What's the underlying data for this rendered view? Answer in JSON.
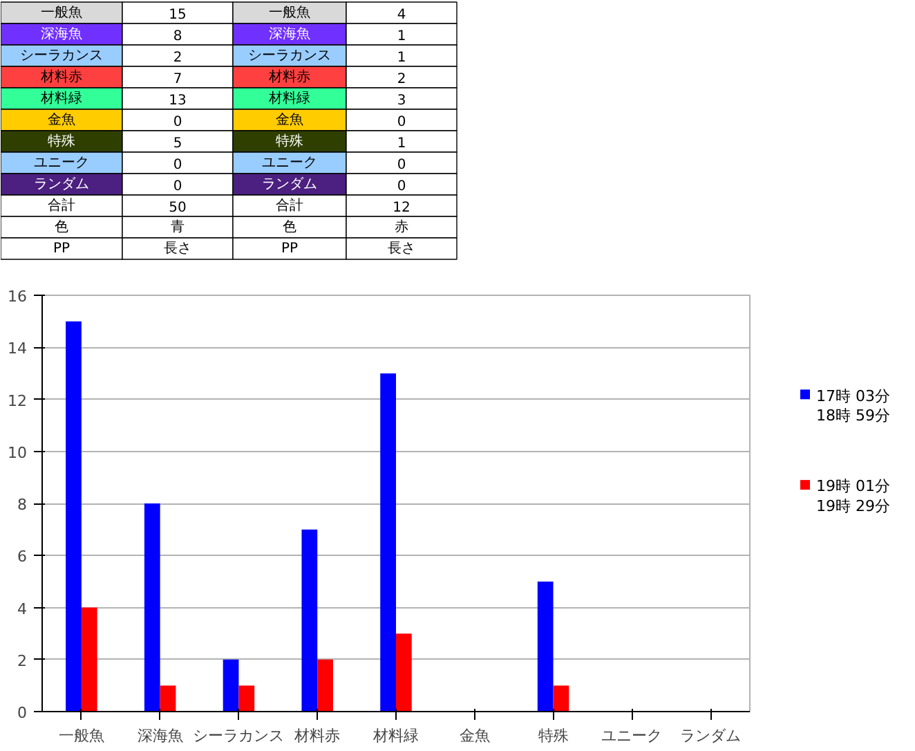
{
  "chart_data": [
    {
      "type": "other",
      "annotations": [
        "一般魚",
        "15",
        "一般魚",
        "4",
        "深海魚",
        "8",
        "深海魚",
        "1",
        "シーラカンス",
        "2",
        "シーラカンス",
        "1",
        "材料赤",
        "7",
        "材料赤",
        "2",
        "材料緑",
        "13",
        "材料緑",
        "3",
        "金魚",
        "0",
        "金魚",
        "0",
        "特殊",
        "5",
        "特殊",
        "1",
        "ユニーク",
        "0",
        "ユニーク",
        "0",
        "ランダム",
        "0",
        "ランダム",
        "0",
        "合計",
        "50",
        "合計",
        "12",
        "色",
        "青",
        "色",
        "赤",
        "PP",
        "長さ",
        "PP",
        "長さ"
      ],
      "colors": [
        "#d9d9d9",
        "#7030ff",
        "#99ccff",
        "#ff4040",
        "#33ff99",
        "#ffcc00",
        "#2f3f00",
        "#99ccff",
        "#4b2080",
        null,
        null,
        null
      ]
    },
    {
      "type": "bar",
      "categories": [
        "一般魚",
        "深海魚",
        "シーラカンス",
        "材料赤",
        "材料緑",
        "金魚",
        "特殊",
        "ユニーク",
        "ランダム"
      ],
      "series": [
        {
          "name": "17時 03分\n18時 59分",
          "color": "#0000ff",
          "values": [
            15,
            8,
            2,
            7,
            13,
            0,
            5,
            0,
            0
          ]
        },
        {
          "name": "19時 01分\n19時 29分",
          "color": "#ff0000",
          "values": [
            4,
            1,
            1,
            2,
            3,
            0,
            1,
            0,
            0
          ]
        }
      ],
      "ylim": [
        0,
        16
      ],
      "yticks": [
        0,
        2,
        4,
        6,
        8,
        10,
        12,
        14,
        16
      ],
      "grid": "y",
      "legend": "right"
    }
  ]
}
